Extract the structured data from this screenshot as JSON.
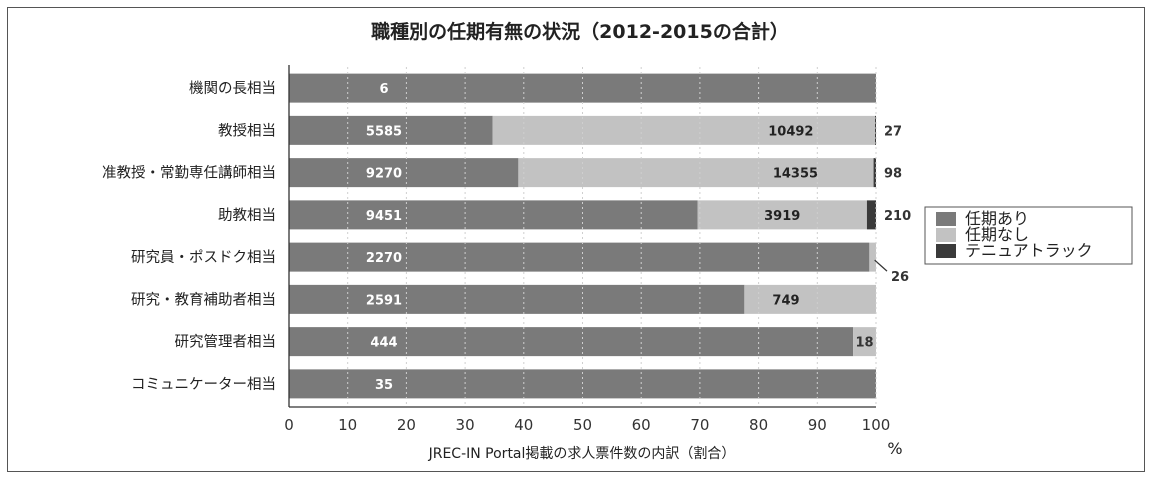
{
  "chart_data": {
    "type": "bar",
    "orientation": "horizontal",
    "stacked": "percent",
    "title": "職種別の任期有無の状況（2012-2015の合計）",
    "xlabel": "JREC-IN Portal掲載の求人票件数の内訳（割合）",
    "xunit": "%",
    "xlim": [
      0,
      100
    ],
    "xticks": [
      0,
      10,
      20,
      30,
      40,
      50,
      60,
      70,
      80,
      90,
      100
    ],
    "grid": "vertical dotted",
    "legend_position": "right",
    "categories": [
      "機関の長相当",
      "教授相当",
      "准教授・常勤専任講師相当",
      "助教相当",
      "研究員・ポスドク相当",
      "研究・教育補助者相当",
      "研究管理者相当",
      "コミュニケーター相当"
    ],
    "series": [
      {
        "name": "任期あり",
        "color": "#7a7a7a",
        "values": [
          6,
          5585,
          9270,
          9451,
          2270,
          2591,
          444,
          35
        ]
      },
      {
        "name": "任期なし",
        "color": "#c2c2c2",
        "values": [
          0,
          10492,
          14355,
          3919,
          26,
          749,
          18,
          0
        ]
      },
      {
        "name": "テニュアトラック",
        "color": "#3a3a3a",
        "values": [
          0,
          27,
          98,
          210,
          0,
          0,
          0,
          0
        ]
      }
    ]
  }
}
